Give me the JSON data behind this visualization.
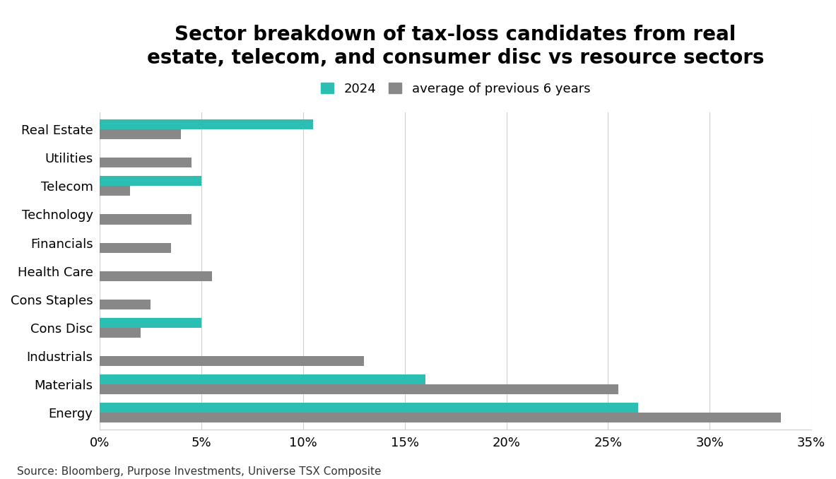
{
  "title": "Sector breakdown of tax-loss candidates from real\nestate, telecom, and consumer disc vs resource sectors",
  "categories": [
    "Energy",
    "Materials",
    "Industrials",
    "Cons Disc",
    "Cons Staples",
    "Health Care",
    "Financials",
    "Technology",
    "Telecom",
    "Utilities",
    "Real Estate"
  ],
  "values_2024": [
    26.5,
    16.0,
    0,
    5.0,
    0,
    0,
    0,
    0,
    5.0,
    0,
    10.5
  ],
  "values_avg": [
    33.5,
    25.5,
    13.0,
    2.0,
    2.5,
    5.5,
    3.5,
    4.5,
    1.5,
    4.5,
    4.0
  ],
  "color_2024": "#2bbfb3",
  "color_avg": "#888888",
  "legend_2024": "2024",
  "legend_avg": "average of previous 6 years",
  "source": "Source: Bloomberg, Purpose Investments, Universe TSX Composite",
  "xlim": [
    0,
    35
  ],
  "xtick_values": [
    0,
    5,
    10,
    15,
    20,
    25,
    30,
    35
  ],
  "background_color": "#ffffff",
  "title_fontsize": 20,
  "tick_fontsize": 13,
  "label_fontsize": 13,
  "bar_height": 0.35,
  "bar_spacing": 1.0
}
